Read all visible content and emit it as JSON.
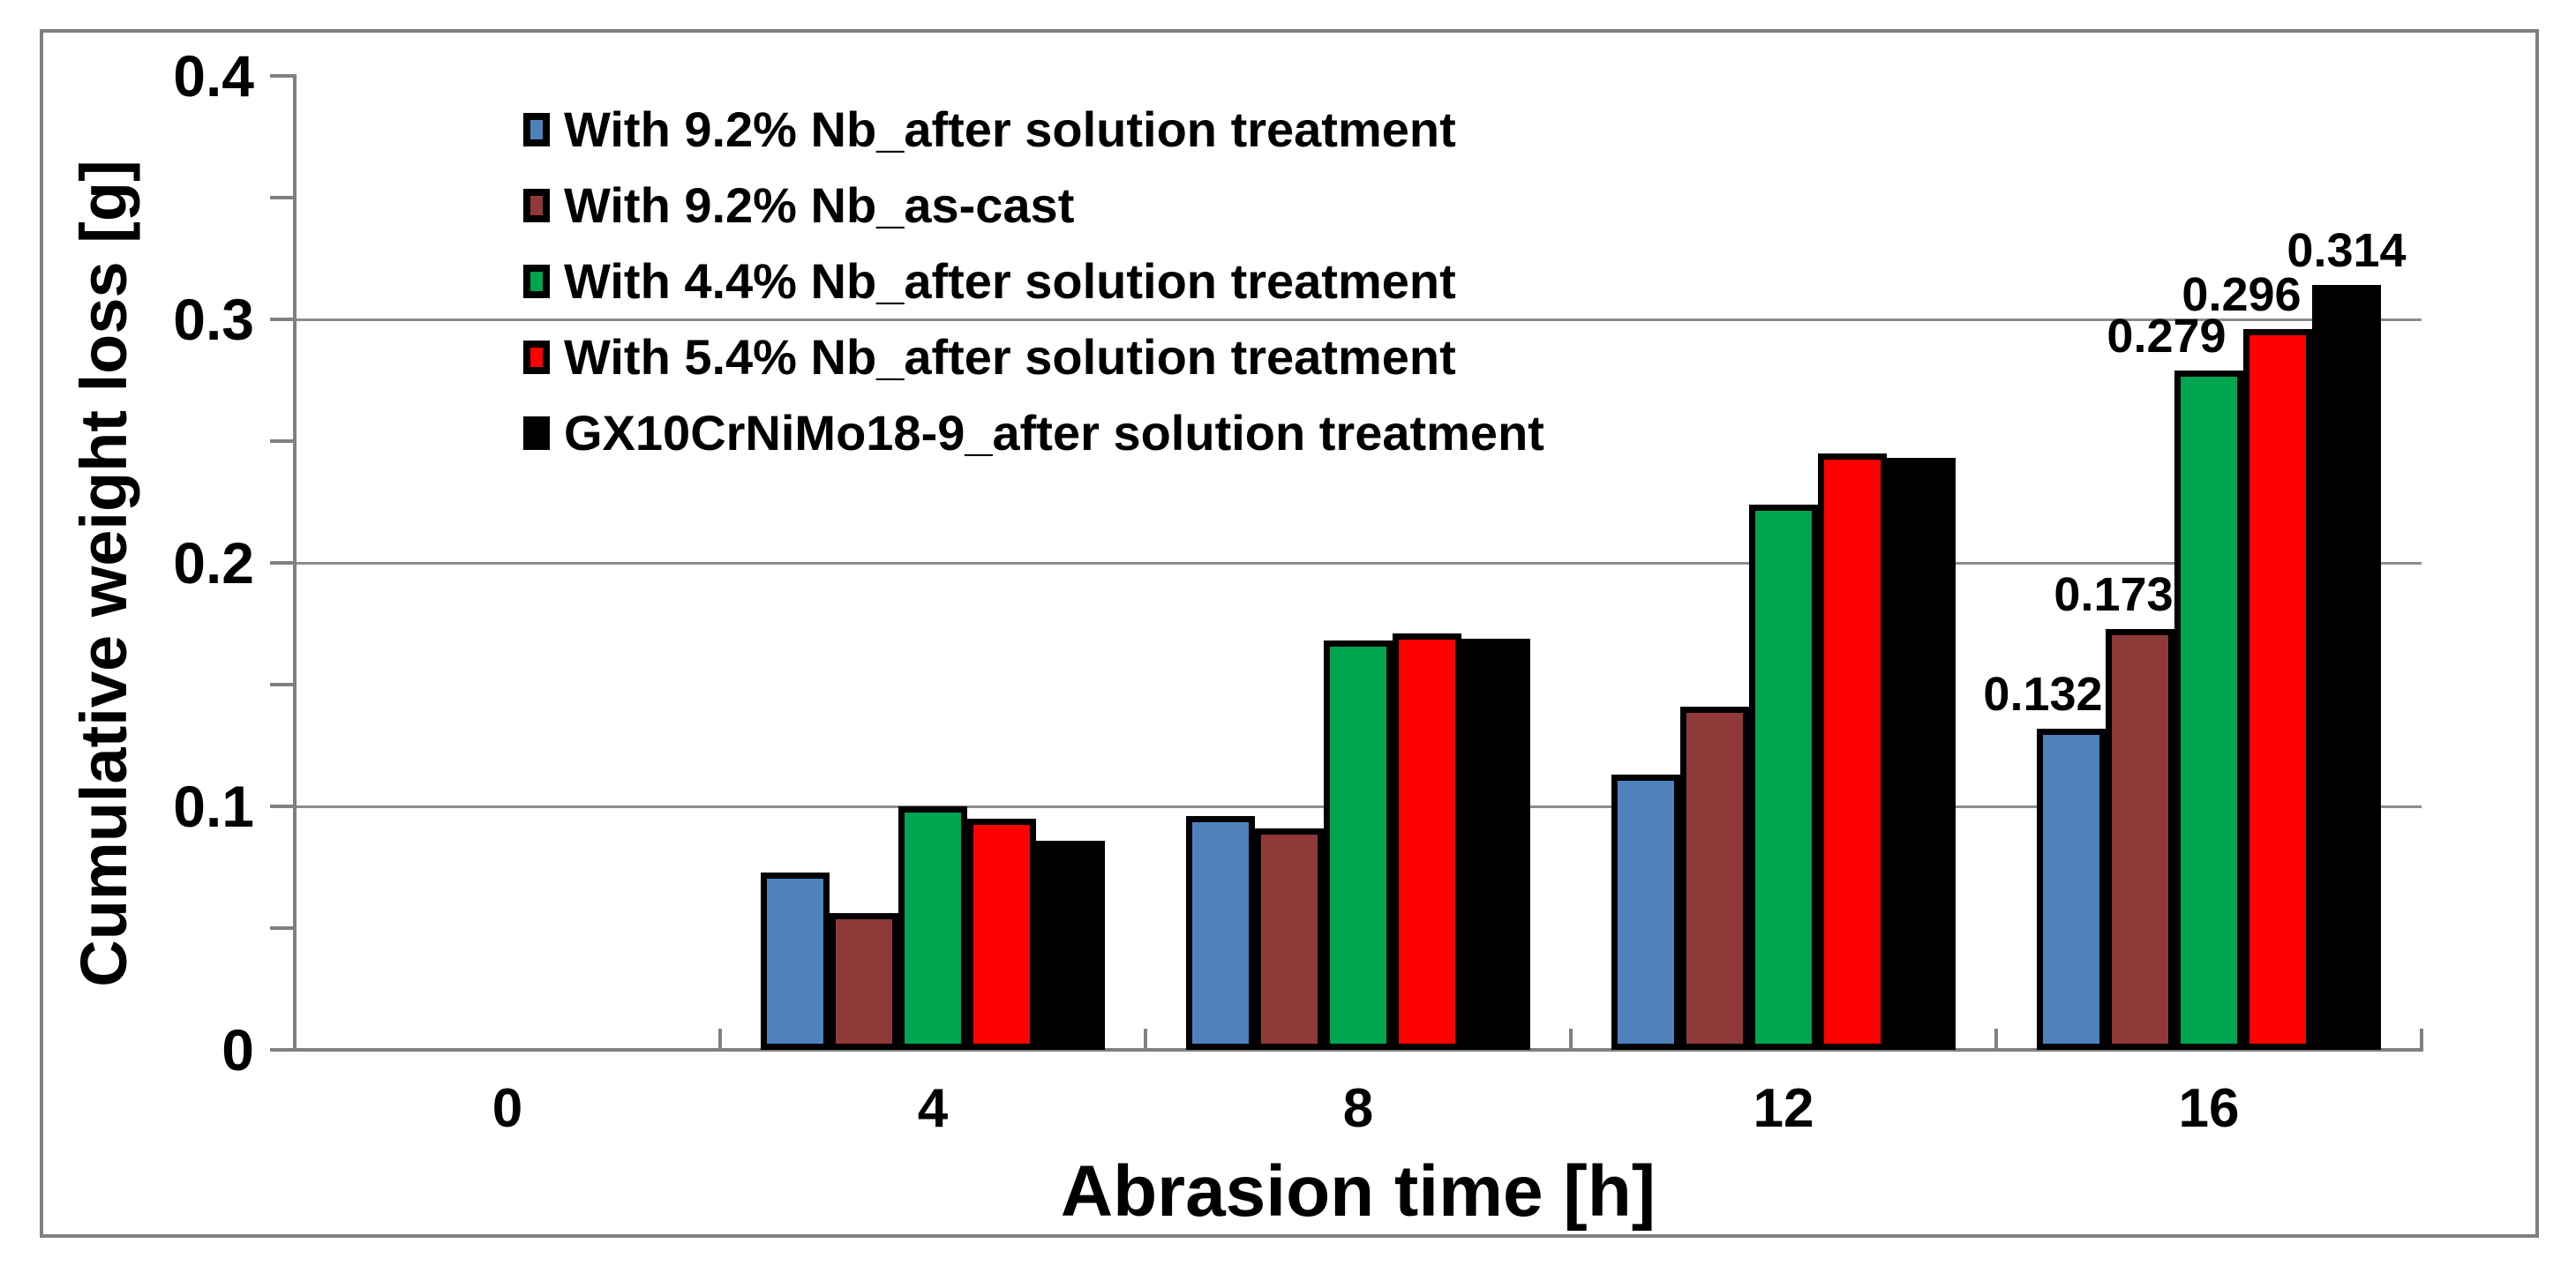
{
  "chart_data": {
    "type": "bar",
    "title": "",
    "xlabel": "Abrasion time [h]",
    "ylabel": "Cumulative weight loss [g]",
    "categories": [
      "0",
      "4",
      "8",
      "12",
      "16"
    ],
    "series": [
      {
        "name": "With 9.2% Nb_after solution treatment",
        "color": "#4F81BD",
        "values": [
          0,
          0.073,
          0.096,
          0.113,
          0.132
        ]
      },
      {
        "name": "With 9.2% Nb_as-cast",
        "color": "#8F3A38",
        "values": [
          0,
          0.056,
          0.091,
          0.141,
          0.173
        ]
      },
      {
        "name": "With 4.4% Nb_after solution treatment",
        "color": "#00A550",
        "values": [
          0,
          0.1,
          0.168,
          0.224,
          0.279
        ]
      },
      {
        "name": "With 5.4% Nb_after solution treatment",
        "color": "#FE0000",
        "values": [
          0,
          0.095,
          0.171,
          0.245,
          0.296
        ]
      },
      {
        "name": "GX10CrNiMo18-9_after solution treatment",
        "color": "#000000",
        "values": [
          0,
          0.086,
          0.169,
          0.243,
          0.314
        ]
      }
    ],
    "ylim": [
      0,
      0.4
    ],
    "y_major_ticks": [
      0,
      0.1,
      0.2,
      0.3,
      0.4
    ],
    "y_minor_tick_step": 0.05,
    "y_tick_labels": [
      "0",
      "0.1",
      "0.2",
      "0.3",
      "0.4"
    ],
    "gridlines": [
      0.1,
      0.2,
      0.3
    ],
    "grid": "horizontal-major-only",
    "legend_position": "inside-top-left",
    "data_labels_last_category": [
      "0.132",
      "0.173",
      "0.279",
      "0.296",
      "0.314"
    ],
    "colors": {
      "axis": "#808080",
      "gridline": "#8c8c8c",
      "figure_border": "#7f7f7f",
      "bar_outline": "#000000",
      "text": "#000000"
    }
  }
}
